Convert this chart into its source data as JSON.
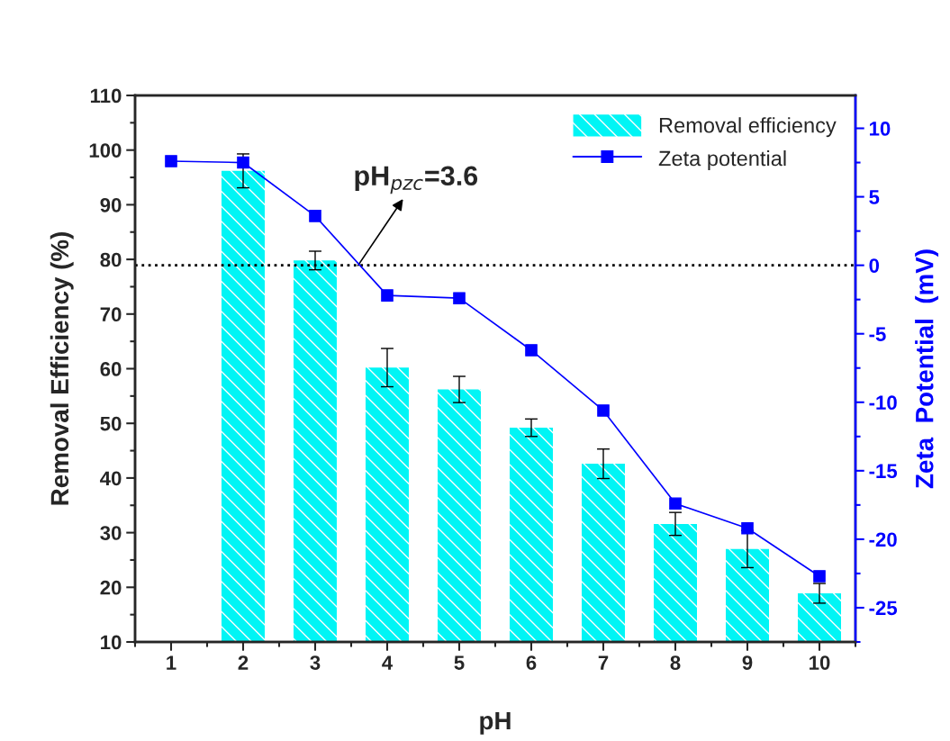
{
  "chart_data": {
    "type": "bar",
    "x": [
      1,
      2,
      3,
      4,
      5,
      6,
      7,
      8,
      9,
      10
    ],
    "xlabel": "pH",
    "ylabel": "Removal Efficiency (%)",
    "y2label": "Zeta  Potential  (mV)",
    "xlim": [
      0.5,
      10.5
    ],
    "xticks": [
      1,
      2,
      3,
      4,
      5,
      6,
      7,
      8,
      9,
      10
    ],
    "ylim": [
      10,
      110
    ],
    "yticks": [
      10,
      20,
      30,
      40,
      50,
      60,
      70,
      80,
      90,
      100,
      110
    ],
    "y2lim": [
      -27.5,
      12.4
    ],
    "y2ticks": [
      -25,
      -20,
      -15,
      -10,
      -5,
      0,
      5,
      10
    ],
    "series": [
      {
        "name": "Removal efficiency",
        "color": "#00f5f5",
        "values": [
          null,
          96.2,
          79.8,
          60.2,
          56.2,
          49.2,
          42.6,
          31.6,
          27.0,
          18.9
        ],
        "errors": [
          null,
          3.1,
          1.7,
          3.5,
          2.4,
          1.6,
          2.7,
          2.1,
          3.4,
          1.8
        ]
      },
      {
        "name": "Zeta potential",
        "type": "line",
        "axis": "y2",
        "color": "#0000ff",
        "marker": "square",
        "values": [
          7.6,
          7.5,
          3.6,
          -2.2,
          -2.4,
          -6.2,
          -10.6,
          -17.4,
          -19.2,
          -22.7
        ]
      }
    ],
    "ref_lines": [
      {
        "axis": "y2",
        "value": 0,
        "color": "#000000",
        "line_style": "dotted"
      }
    ],
    "annotations": [
      "pH$_{pzc}$=3.6"
    ],
    "legend": "top right",
    "grid": false
  }
}
